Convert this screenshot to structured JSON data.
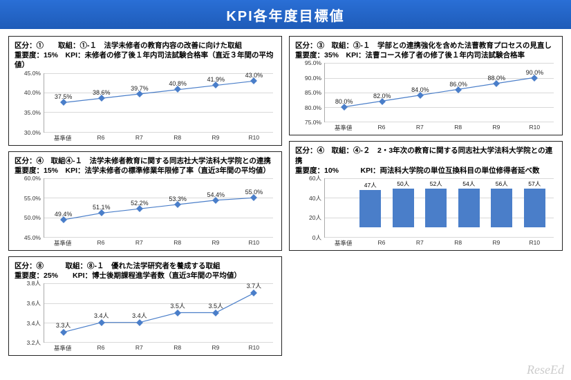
{
  "title": "KPI各年度目標値",
  "watermark": "ReseEd",
  "x_categories": [
    "基準値",
    "R6",
    "R7",
    "R8",
    "R9",
    "R10"
  ],
  "colors": {
    "line": "#4a7ec9",
    "marker": "#4a7ec9",
    "bar": "#4a7ec9",
    "grid": "#d8d8d8",
    "axis": "#aaaaaa"
  },
  "panels": [
    {
      "id": "p1",
      "header": "区分：①　　取組：①-１　法学未修者の教育内容の改善に向けた取組\n重要度：15%　KPI：未修者の修了後１年内司法試験合格率（直近３年間の平均値）",
      "type": "line",
      "ylim": [
        30,
        45
      ],
      "ytick_step": 5,
      "unit": "%",
      "values": [
        37.5,
        38.6,
        39.7,
        40.8,
        41.9,
        43.0
      ],
      "labels": [
        "37.5%",
        "38.6%",
        "39.7%",
        "40.8%",
        "41.9%",
        "43.0%"
      ]
    },
    {
      "id": "p2",
      "header": "区分：③　取組：③-１　学部との連携強化を含めた法曹教育プロセスの見直し\n重要度：35%　KPI：法曹コース修了者の修了後１年内司法試験合格率",
      "type": "line",
      "ylim": [
        75,
        95
      ],
      "ytick_step": 5,
      "unit": "%",
      "values": [
        80.0,
        82.0,
        84.0,
        86.0,
        88.0,
        90.0
      ],
      "labels": [
        "80.0%",
        "82.0%",
        "84.0%",
        "86.0%",
        "88.0%",
        "90.0%"
      ]
    },
    {
      "id": "p3",
      "header": "区分：④　取組④-１　法学未修者教育に関する同志社大学法科大学院との連携\n重要度：15%　KPI：法学未修者の標準修業年限修了率（直近3年間の平均値）",
      "type": "line",
      "ylim": [
        45,
        60
      ],
      "ytick_step": 5,
      "unit": "%",
      "values": [
        49.4,
        51.1,
        52.2,
        53.3,
        54.4,
        55.0
      ],
      "labels": [
        "49.4%",
        "51.1%",
        "52.2%",
        "53.3%",
        "54.4%",
        "55.0%"
      ]
    },
    {
      "id": "p4",
      "header": "区分：④　取組：④-２　2・3年次の教育に関する同志社大学法科大学院との連携\n重要度：10%　　　KPI：両法科大学院の単位互換科目の単位修得者延べ数",
      "type": "bar",
      "ylim": [
        0,
        60
      ],
      "ytick_step": 20,
      "unit": "人",
      "values": [
        47,
        50,
        52,
        54,
        56,
        57
      ],
      "labels": [
        "47人",
        "50人",
        "52人",
        "54人",
        "56人",
        "57人"
      ]
    },
    {
      "id": "p5",
      "header": "区分：⑧　　　取組：⑧-１　優れた法学研究者を養成する取組\n重要度：25%　　KPI：博士後期課程進学者数（直近3年間の平均値）",
      "type": "line",
      "ylim": [
        3.2,
        3.8
      ],
      "ytick_step": 0.2,
      "unit": "人",
      "values": [
        3.3,
        3.4,
        3.4,
        3.5,
        3.5,
        3.7
      ],
      "labels": [
        "3.3人",
        "3.4人",
        "3.4人",
        "3.5人",
        "3.5人",
        "3.7人"
      ]
    }
  ]
}
